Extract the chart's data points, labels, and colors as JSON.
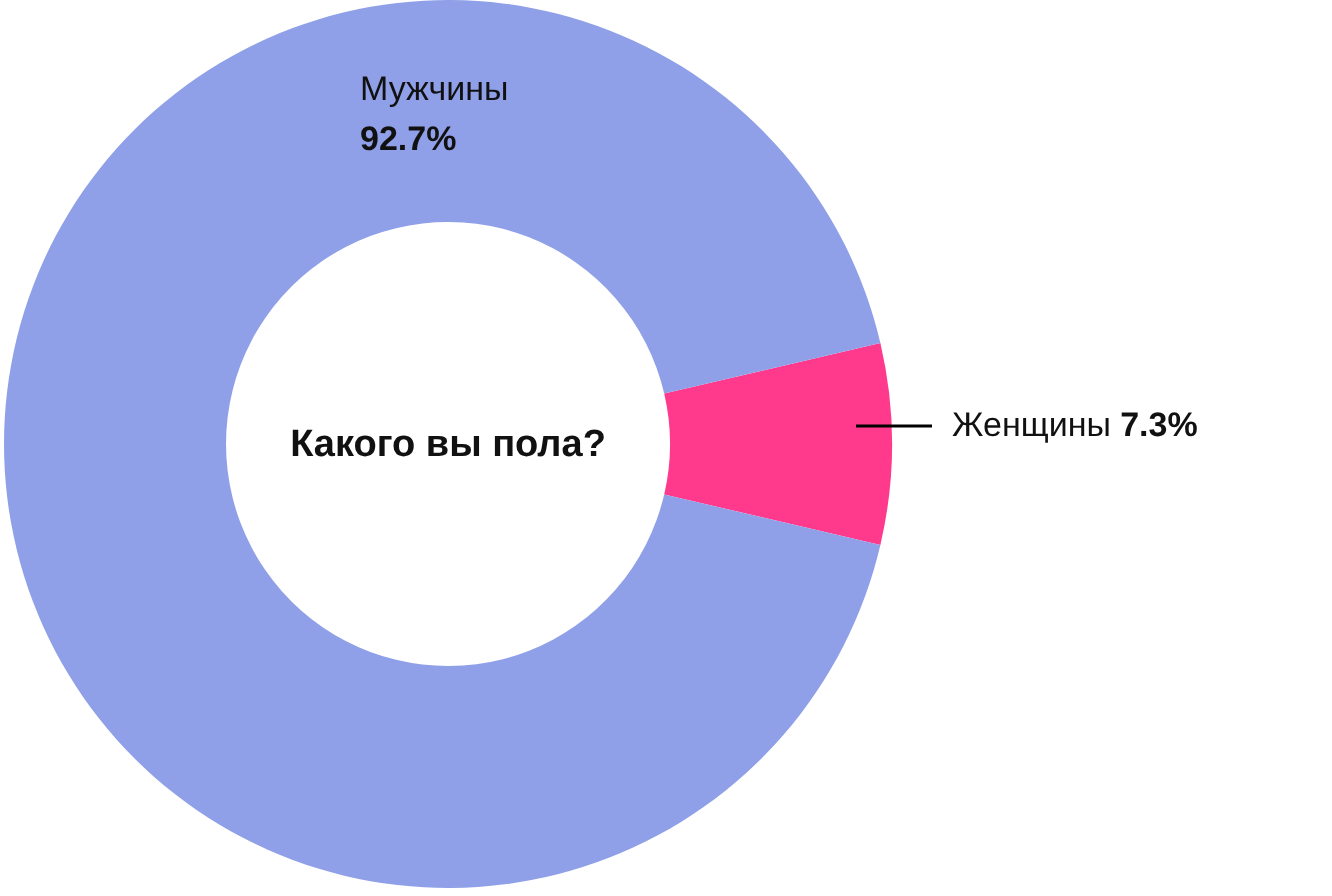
{
  "chart_data": {
    "type": "donut",
    "title": "Какого вы пола?",
    "categories": [
      "Женщины",
      "Мужчины"
    ],
    "values": [
      7.3,
      92.7
    ],
    "colors": [
      "#ff3a8c",
      "#8fa0e8"
    ],
    "value_labels": [
      "7.3%",
      "92.7%"
    ]
  }
}
